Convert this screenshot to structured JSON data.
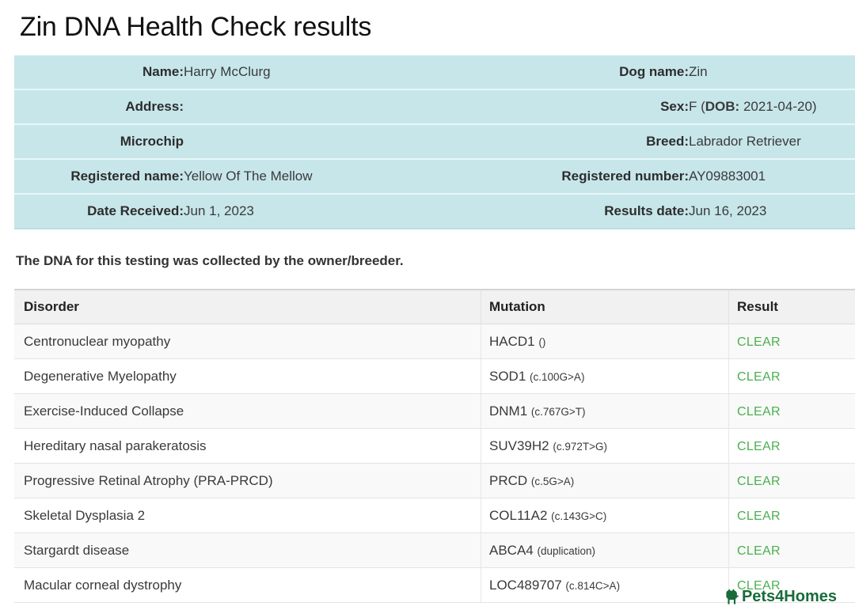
{
  "page": {
    "title": "Zin DNA Health Check results"
  },
  "colors": {
    "info_bg": "#c7e6ea",
    "clear_green": "#4caf50",
    "watermark_green": "#186b3b"
  },
  "info_table": {
    "rows": [
      {
        "label_left": "Name:",
        "value_left": "Harry McClurg",
        "label_right": "Dog name:",
        "value_right": [
          {
            "text": "Zin"
          }
        ]
      },
      {
        "label_left": "Address:",
        "value_left": "",
        "label_right": "Sex:",
        "value_right": [
          {
            "text": "F ("
          },
          {
            "text": "DOB:",
            "bold": true
          },
          {
            "text": " 2021-04-20)"
          }
        ]
      },
      {
        "label_left": "Microchip",
        "value_left": "",
        "label_right": "Breed:",
        "value_right": [
          {
            "text": "Labrador Retriever"
          }
        ]
      },
      {
        "label_left": "Registered name:",
        "value_left": "Yellow Of The Mellow",
        "label_right": "Registered number:",
        "value_right": [
          {
            "text": "AY09883001"
          }
        ]
      },
      {
        "label_left": "Date Received:",
        "value_left": "Jun 1, 2023",
        "label_right": "Results date:",
        "value_right": [
          {
            "text": "Jun 16, 2023"
          }
        ]
      }
    ]
  },
  "note": "The DNA for this testing was collected by the owner/breeder.",
  "results_table": {
    "headers": [
      "Disorder",
      "Mutation",
      "Result"
    ],
    "rows": [
      {
        "disorder": "Centronuclear myopathy",
        "gene": "HACD1",
        "variant": "",
        "result": "CLEAR"
      },
      {
        "disorder": "Degenerative Myelopathy",
        "gene": "SOD1",
        "variant": "c.100G>A",
        "result": "CLEAR"
      },
      {
        "disorder": "Exercise-Induced Collapse",
        "gene": "DNM1",
        "variant": "c.767G>T",
        "result": "CLEAR"
      },
      {
        "disorder": "Hereditary nasal parakeratosis",
        "gene": "SUV39H2",
        "variant": "c.972T>G",
        "result": "CLEAR"
      },
      {
        "disorder": "Progressive Retinal Atrophy (PRA-PRCD)",
        "gene": "PRCD",
        "variant": "c.5G>A",
        "result": "CLEAR"
      },
      {
        "disorder": "Skeletal Dysplasia 2",
        "gene": "COL11A2",
        "variant": "c.143G>C",
        "result": "CLEAR"
      },
      {
        "disorder": "Stargardt disease",
        "gene": "ABCA4",
        "variant": "duplication",
        "result": "CLEAR"
      },
      {
        "disorder": "Macular corneal dystrophy",
        "gene": "LOC489707",
        "variant": "c.814C>A",
        "result": "CLEAR"
      }
    ]
  },
  "watermark": {
    "text": "Pets4Homes"
  }
}
